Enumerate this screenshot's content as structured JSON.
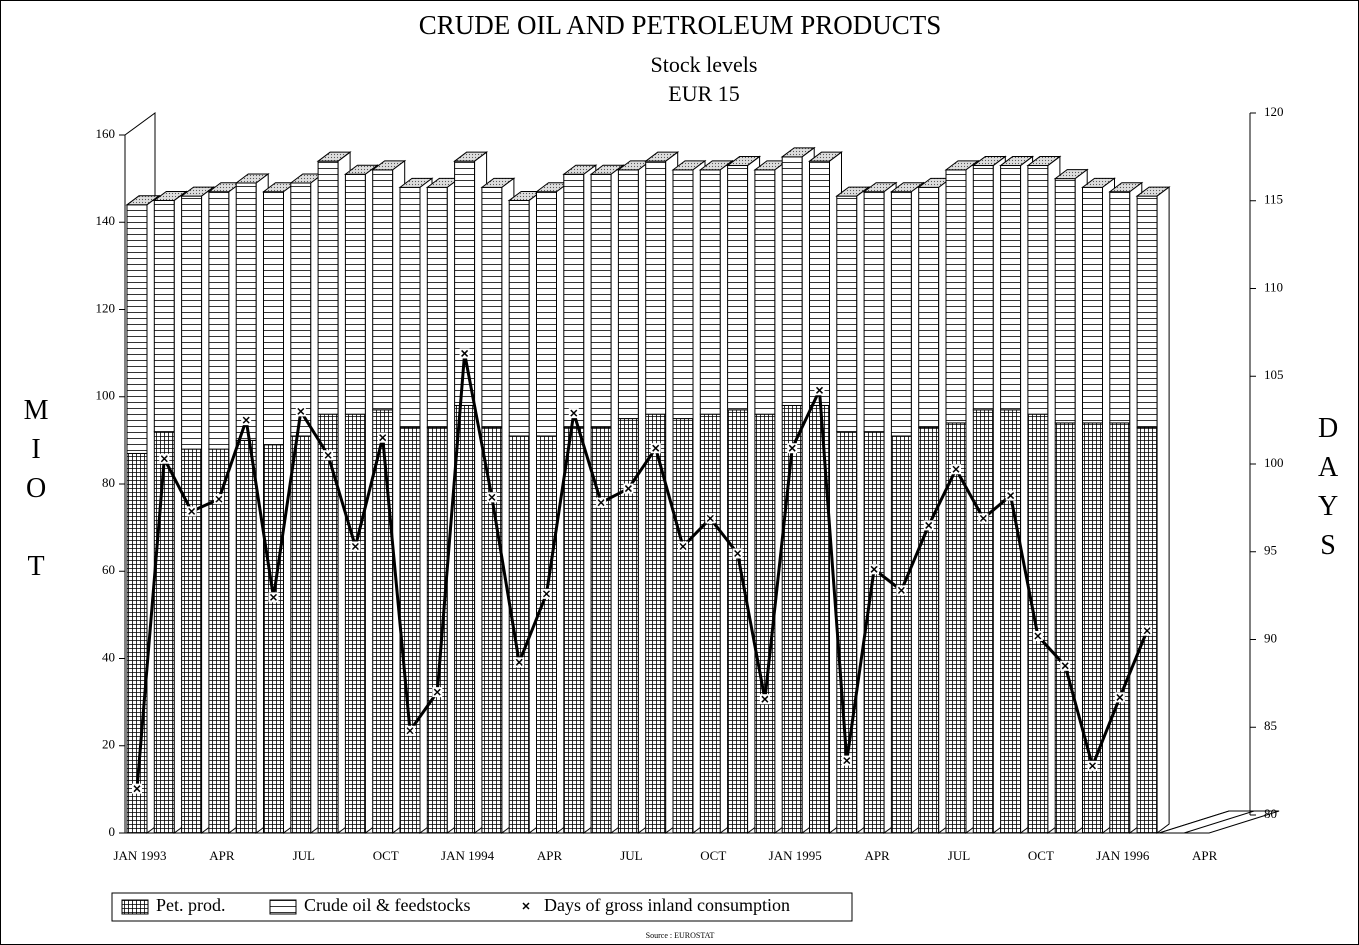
{
  "chart_data": {
    "type": "bar",
    "stacked": true,
    "title": "CRUDE OIL AND PETROLEUM PRODUCTS",
    "subtitle": "Stock levels",
    "region": "EUR 15",
    "ylabel": "MIO T",
    "y2label": "DAYS",
    "source": "Source : EUROSTAT",
    "categories": [
      "JAN 1993",
      null,
      null,
      "APR",
      null,
      null,
      "JUL",
      null,
      null,
      "OCT",
      null,
      null,
      "JAN 1994",
      null,
      null,
      "APR",
      null,
      null,
      "JUL",
      null,
      null,
      "OCT",
      null,
      null,
      "JAN 1995",
      null,
      null,
      "APR",
      null,
      null,
      "JUL",
      null,
      null,
      "OCT",
      null,
      null,
      "JAN 1996",
      null,
      null,
      "APR"
    ],
    "series": [
      {
        "name": "Pet. prod.",
        "color": "#000000",
        "pattern": "grid",
        "values": [
          87,
          92,
          88,
          88,
          90,
          89,
          91,
          96,
          96,
          97,
          93,
          93,
          98,
          93,
          91,
          91,
          93,
          93,
          95,
          96,
          95,
          96,
          97,
          96,
          98,
          98,
          92,
          92,
          91,
          93,
          94,
          97,
          97,
          96,
          94,
          94,
          94,
          93,
          null,
          null
        ]
      },
      {
        "name": "Crude oil & feedstocks",
        "color": "#000000",
        "pattern": "lines",
        "values": [
          57,
          53,
          58,
          59,
          59,
          58,
          58,
          58,
          55,
          55,
          55,
          55,
          56,
          55,
          54,
          56,
          58,
          58,
          57,
          58,
          57,
          56,
          56,
          56,
          57,
          56,
          54,
          55,
          56,
          55,
          58,
          56,
          56,
          57,
          56,
          54,
          53,
          53,
          null,
          null
        ]
      },
      {
        "name": "Days of gross inland consumption",
        "color": "#000000",
        "type": "line",
        "marker": "x",
        "axis": "y2",
        "values": [
          81.5,
          100.3,
          97.3,
          98.0,
          102.5,
          92.4,
          103.0,
          100.5,
          95.3,
          101.5,
          84.8,
          87.0,
          106.3,
          98.1,
          88.7,
          92.6,
          102.9,
          97.8,
          98.6,
          100.9,
          95.3,
          96.9,
          94.9,
          86.6,
          100.9,
          104.2,
          83.1,
          94.0,
          92.8,
          96.5,
          99.7,
          96.9,
          98.2,
          90.2,
          88.5,
          82.8,
          86.7,
          90.5,
          null,
          null
        ]
      }
    ],
    "ylim": [
      0,
      160
    ],
    "yticks": [
      0,
      20,
      40,
      60,
      80,
      100,
      120,
      140,
      160
    ],
    "y2lim": [
      80,
      120
    ],
    "y2ticks": [
      80,
      85,
      90,
      95,
      100,
      105,
      110,
      115,
      120
    ],
    "legend": "bottom"
  }
}
